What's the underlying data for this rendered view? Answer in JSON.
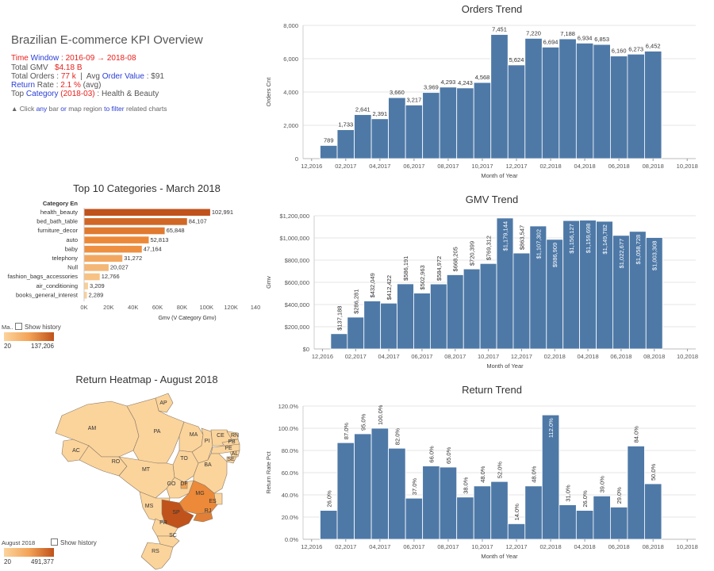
{
  "kpi": {
    "title": "Brazilian E-commerce KPI Overview",
    "time_label_a": "Time ",
    "time_label_b": "Window",
    "time_sep": " : ",
    "time_start": "2016-09",
    "time_arrow": " → ",
    "time_end": "2018-08",
    "gmv_label": "Total GMV",
    "gmv_value": "$4.18 B",
    "orders_label": "Total Orders : ",
    "orders_value": "77 k",
    "divider": "  |  ",
    "aov_label_a": "Avg ",
    "aov_label_b": "Order Value",
    "aov_sep": " : $91",
    "return_label_a": "Return",
    "return_label_b": " Rate  : ",
    "return_value": "2.1 %",
    "return_avg": "  (avg)",
    "top_label_a": "Top ",
    "top_label_b": "Category",
    "top_period": " (2018-03)",
    "top_value": " : Health & Beauty",
    "hint_a": "▲ Click ",
    "hint_b": "any",
    "hint_c": " bar ",
    "hint_d": "or",
    "hint_e": " map region ",
    "hint_f": "to filter",
    "hint_g": " related charts"
  },
  "categories_legend": {
    "label": "Ma..",
    "show_history": "Show history",
    "min": "20",
    "max": "137,206"
  },
  "map_legend": {
    "label": "August 2018",
    "show_history": "Show history",
    "min": "20",
    "max": "491,377"
  },
  "colors": {
    "bar_blue": "#4e79a7",
    "orange_dark": "#c0521b",
    "orange_mid": "#ec8a3a",
    "orange_light": "#f7b66a",
    "map_light": "#fbd49c"
  },
  "map": {
    "title": "Return Heatmap - August 2018",
    "states": [
      "AP",
      "AM",
      "PA",
      "MA",
      "CE",
      "RN",
      "PI",
      "PB",
      "PE",
      "AL",
      "SE",
      "AC",
      "RO",
      "TO",
      "BA",
      "MT",
      "GO",
      "DF",
      "MG",
      "ES",
      "MS",
      "SP",
      "RJ",
      "PR",
      "SC",
      "RS"
    ]
  },
  "chart_data": [
    {
      "type": "bar",
      "title": "Orders Trend",
      "xlabel": "Month of Year",
      "ylabel": "Orders Cnt",
      "x": [
        "01,2017",
        "02,2017",
        "03,2017",
        "04,2017",
        "05,2017",
        "06,2017",
        "07,2017",
        "08,2017",
        "09,2017",
        "10,2017",
        "11,2017",
        "12,2017",
        "01,2018",
        "02,2018",
        "03,2018",
        "04,2018",
        "05,2018",
        "06,2018",
        "07,2018",
        "08,2018"
      ],
      "values": [
        789,
        1733,
        2641,
        2391,
        3660,
        3217,
        3969,
        4293,
        4243,
        4568,
        7451,
        5624,
        7220,
        6694,
        7188,
        6934,
        6853,
        6160,
        6273,
        6452
      ],
      "labels": [
        "789",
        "1,733",
        "2,641",
        "2,391",
        "3,660",
        "3,217",
        "3,969",
        "4,293",
        "4,243",
        "4,568",
        "7,451",
        "5,624",
        "7,220",
        "6,694",
        "7,188",
        "6,934",
        "6,853",
        "6,160",
        "6,273",
        "6,452"
      ],
      "ylim": [
        0,
        8000
      ],
      "yticks": [
        "0",
        "2,000",
        "4,000",
        "6,000",
        "8,000"
      ],
      "xticks": [
        "12,2016",
        "02,2017",
        "04,2017",
        "06,2017",
        "08,2017",
        "10,2017",
        "12,2017",
        "02,2018",
        "04,2018",
        "06,2018",
        "08,2018",
        "10,2018"
      ]
    },
    {
      "type": "bar",
      "title": "GMV Trend",
      "xlabel": "Month of Year",
      "ylabel": "Gmv",
      "x": [
        "01,2017",
        "02,2017",
        "03,2017",
        "04,2017",
        "05,2017",
        "06,2017",
        "07,2017",
        "08,2017",
        "09,2017",
        "10,2017",
        "11,2017",
        "12,2017",
        "01,2018",
        "02,2018",
        "03,2018",
        "04,2018",
        "05,2018",
        "06,2018",
        "07,2018",
        "08,2018"
      ],
      "values": [
        137188,
        286281,
        432049,
        412422,
        586191,
        502963,
        584972,
        668205,
        720399,
        769312,
        1179144,
        863547,
        1107302,
        986909,
        1156127,
        1159698,
        1149782,
        1022677,
        1058728,
        1003308
      ],
      "labels": [
        "$137,188",
        "$286,281",
        "$432,049",
        "$412,422",
        "$586,191",
        "$502,963",
        "$584,972",
        "$668,205",
        "$720,399",
        "$769,312",
        "$1,179,144",
        "$863,547",
        "$1,107,302",
        "$986,909",
        "$1,156,127",
        "$1,159,698",
        "$1,149,782",
        "$1,022,677",
        "$1,058,728",
        "$1,003,308"
      ],
      "ylim": [
        0,
        1200000
      ],
      "yticks": [
        "$0",
        "$200,000",
        "$400,000",
        "$600,000",
        "$800,000",
        "$1,000,000",
        "$1,200,000"
      ],
      "xticks": [
        "12,2016",
        "02,2017",
        "04,2017",
        "06,2017",
        "08,2017",
        "10,2017",
        "12,2017",
        "02,2018",
        "04,2018",
        "06,2018",
        "08,2018",
        "10,2018"
      ]
    },
    {
      "type": "bar",
      "title": "Return Trend",
      "xlabel": "Month of Year",
      "ylabel": "Return Rate Pct",
      "x": [
        "01,2017",
        "02,2017",
        "03,2017",
        "04,2017",
        "05,2017",
        "06,2017",
        "07,2017",
        "08,2017",
        "09,2017",
        "10,2017",
        "11,2017",
        "12,2017",
        "01,2018",
        "02,2018",
        "03,2018",
        "04,2018",
        "05,2018",
        "06,2018",
        "07,2018",
        "08,2018"
      ],
      "values": [
        26,
        87,
        95,
        100,
        82,
        37,
        66,
        65,
        38,
        48,
        52,
        14,
        48,
        112,
        31,
        26,
        39,
        29,
        84,
        50
      ],
      "labels": [
        "26.0%",
        "87.0%",
        "95.0%",
        "100.0%",
        "82.0%",
        "37.0%",
        "66.0%",
        "65.0%",
        "38.0%",
        "48.0%",
        "52.0%",
        "14.0%",
        "48.0%",
        "112.0%",
        "31.0%",
        "26.0%",
        "39.0%",
        "29.0%",
        "84.0%",
        "50.0%"
      ],
      "ylim": [
        0,
        120
      ],
      "yticks": [
        "0.0%",
        "20.0%",
        "40.0%",
        "60.0%",
        "80.0%",
        "100.0%",
        "120.0%"
      ],
      "xticks": [
        "12,2016",
        "02,2017",
        "04,2017",
        "06,2017",
        "08,2017",
        "10,2017",
        "12,2017",
        "02,2018",
        "04,2018",
        "06,2018",
        "08,2018",
        "10,2018"
      ]
    },
    {
      "type": "bar",
      "title": "Top 10 Categories - March 2018",
      "xlabel": "Gmv (V Category Gmv)",
      "ylabel": "Category En",
      "categories": [
        "health_beauty",
        "bed_bath_table",
        "furniture_decor",
        "auto",
        "baby",
        "telephony",
        "Null",
        "fashion_bags_accessories",
        "air_conditioning",
        "books_general_interest"
      ],
      "values": [
        102991,
        84107,
        65848,
        52813,
        47164,
        31272,
        20027,
        12766,
        3209,
        2289
      ],
      "labels": [
        "102,991",
        "84,107",
        "65,848",
        "52,813",
        "47,164",
        "31,272",
        "20,027",
        "12,766",
        "3,209",
        "2,289"
      ],
      "xlim": [
        0,
        140000
      ],
      "xticks": [
        "0K",
        "20K",
        "40K",
        "60K",
        "80K",
        "100K",
        "120K",
        "140"
      ]
    }
  ]
}
